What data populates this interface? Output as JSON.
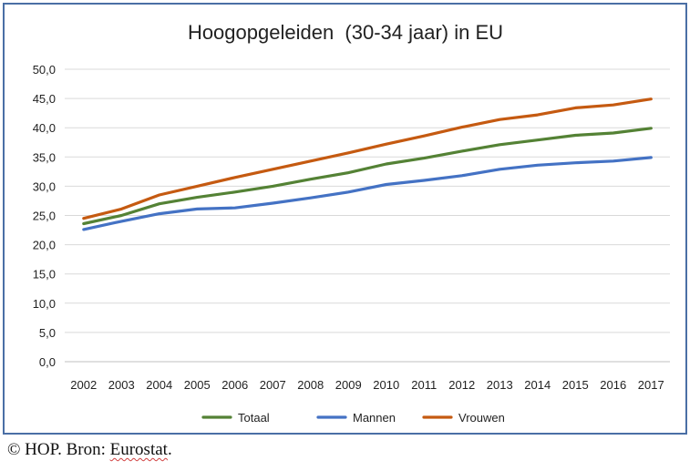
{
  "chart_data": {
    "type": "line",
    "title": "Hoogopgeleiden  (30-34 jaar) in EU",
    "categories": [
      "2002",
      "2003",
      "2004",
      "2005",
      "2006",
      "2007",
      "2008",
      "2009",
      "2010",
      "2011",
      "2012",
      "2013",
      "2014",
      "2015",
      "2016",
      "2017"
    ],
    "y_tick_labels": [
      "0,0",
      "5,0",
      "10,0",
      "15,0",
      "20,0",
      "25,0",
      "30,0",
      "35,0",
      "40,0",
      "45,0",
      "50,0"
    ],
    "ylim": [
      0,
      50
    ],
    "grid": true,
    "legend_position": "bottom",
    "series": [
      {
        "name": "Totaal",
        "color": "#548235",
        "values": [
          23.6,
          25.0,
          27.0,
          28.1,
          29.0,
          30.0,
          31.2,
          32.3,
          33.8,
          34.8,
          36.0,
          37.1,
          37.9,
          38.7,
          39.1,
          39.9
        ]
      },
      {
        "name": "Mannen",
        "color": "#4472c4",
        "values": [
          22.6,
          24.0,
          25.3,
          26.1,
          26.3,
          27.1,
          28.0,
          29.0,
          30.3,
          31.0,
          31.8,
          32.9,
          33.6,
          34.0,
          34.3,
          34.9
        ]
      },
      {
        "name": "Vrouwen",
        "color": "#c55a11",
        "values": [
          24.5,
          26.1,
          28.5,
          30.0,
          31.5,
          32.9,
          34.3,
          35.7,
          37.2,
          38.6,
          40.1,
          41.4,
          42.2,
          43.4,
          43.9,
          44.9
        ]
      }
    ]
  },
  "footer": {
    "source_prefix": "© HOP. Bron: ",
    "source_name": "Eurostat",
    "source_suffix": "."
  }
}
